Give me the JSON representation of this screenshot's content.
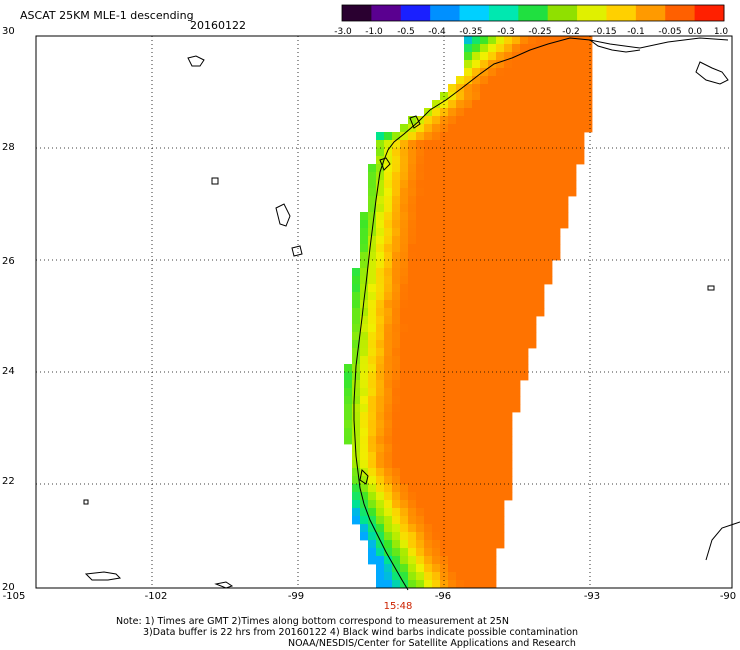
{
  "header": {
    "title": "ASCAT 25KM MLE-1 descending",
    "date": "20160122"
  },
  "colorbar": {
    "ticks": [
      "-3.0",
      "-1.0",
      "-0.5",
      "-0.4",
      "-0.35",
      "-0.3",
      "-0.25",
      "-0.2",
      "-0.15",
      "-0.1",
      "-0.05",
      "0.0",
      "1.0"
    ],
    "colors": [
      "#2a0030",
      "#5a0090",
      "#1a20ff",
      "#0090ff",
      "#00d0ff",
      "#00e8b0",
      "#20e040",
      "#90e000",
      "#e0f000",
      "#ffd000",
      "#ff9a00",
      "#ff6000",
      "#ff2000"
    ]
  },
  "axes": {
    "x_ticks": [
      "-105",
      "-102",
      "-99",
      "-96",
      "-93",
      "-90"
    ],
    "y_ticks": [
      "30",
      "28",
      "26",
      "24",
      "22",
      "20"
    ],
    "lon_range": [
      -105,
      -90
    ],
    "lat_range": [
      20,
      30
    ],
    "grid": true
  },
  "pass_time": "15:48",
  "footer": {
    "note_line1": "Note: 1) Times are GMT 2)Times along bottom correspond to measurement at 25N",
    "note_line2": "3)Data buffer is 22 hrs from 20160122 4) Black wind barbs indicate possible contamination",
    "credit": "NOAA/NESDIS/Center for Satellite Applications and Research"
  },
  "data_swath": {
    "lat_range": [
      20,
      29.8
    ],
    "values_range_shown": [
      "-0.35",
      "0.0"
    ]
  }
}
